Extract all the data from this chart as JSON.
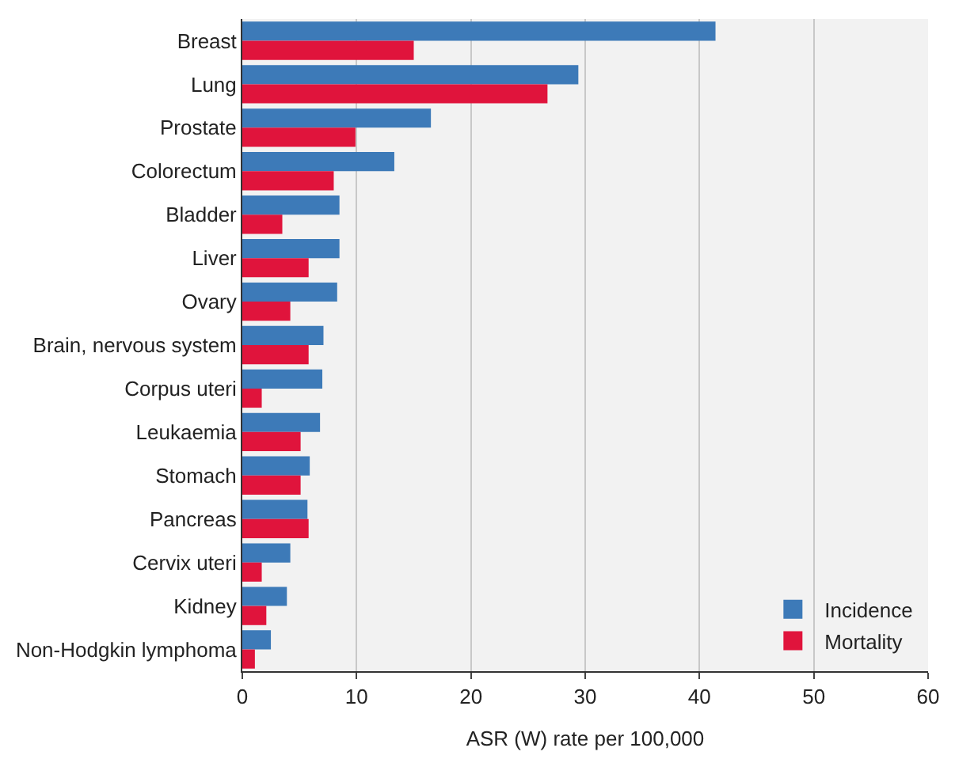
{
  "chart_data": {
    "type": "bar",
    "orientation": "horizontal",
    "categories": [
      "Breast",
      "Lung",
      "Prostate",
      "Colorectum",
      "Bladder",
      "Liver",
      "Ovary",
      "Brain, nervous system",
      "Corpus uteri",
      "Leukaemia",
      "Stomach",
      "Pancreas",
      "Cervix uteri",
      "Kidney",
      "Non-Hodgkin lymphoma"
    ],
    "series": [
      {
        "name": "Incidence",
        "color": "#3d7ab8",
        "values": [
          41.4,
          29.4,
          16.5,
          13.3,
          8.5,
          8.5,
          8.3,
          7.1,
          7.0,
          6.8,
          5.9,
          5.7,
          4.2,
          3.9,
          2.5
        ]
      },
      {
        "name": "Mortality",
        "color": "#e0143c",
        "values": [
          15.0,
          26.7,
          9.9,
          8.0,
          3.5,
          5.8,
          4.2,
          5.8,
          1.7,
          5.1,
          5.1,
          5.8,
          1.7,
          2.1,
          1.1
        ]
      }
    ],
    "xlabel": "ASR (W) rate per 100,000",
    "xlim": [
      0,
      60
    ],
    "xticks": [
      0,
      10,
      20,
      30,
      40,
      50,
      60
    ],
    "grid": "x",
    "legend": "bottom right"
  }
}
